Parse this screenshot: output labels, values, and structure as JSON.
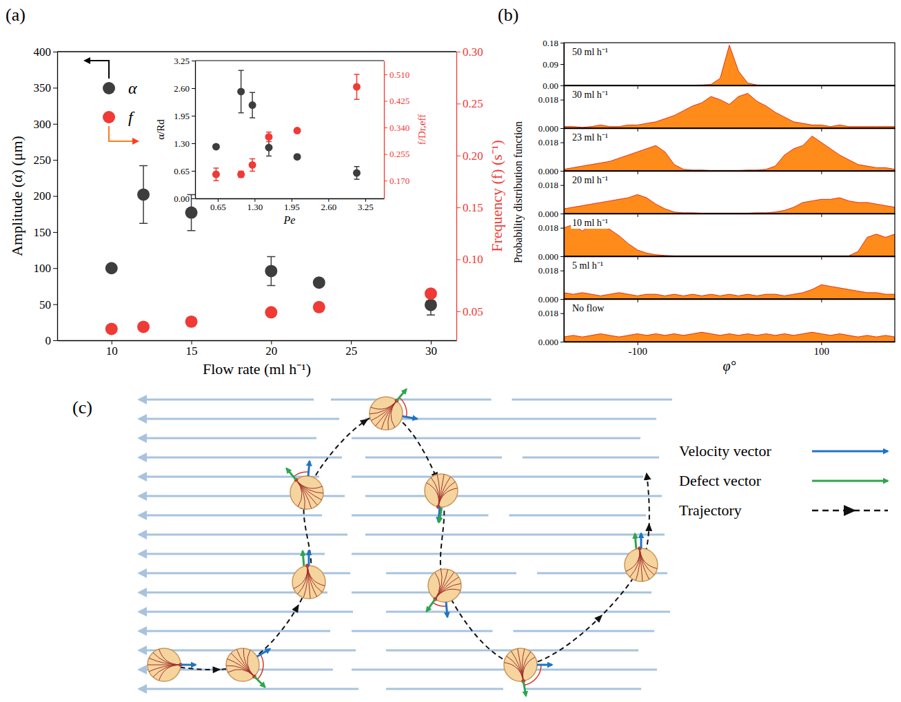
{
  "chart_data": [
    {
      "type": "scatter",
      "title": "(a)",
      "x_label": "Flow rate (ml h⁻¹)",
      "y_label": "Amplitude (α) (μm)",
      "y2_label": "Frequency (f) (s⁻¹)",
      "legend": "upper left",
      "xlim": [
        6.6,
        31.6
      ],
      "xticks": [
        10,
        15,
        20,
        25,
        30
      ],
      "ylim": [
        0,
        400
      ],
      "yticks": [
        0,
        50,
        100,
        150,
        200,
        250,
        300,
        350,
        400
      ],
      "y2lim": [
        0.022,
        0.3
      ],
      "y2ticks": [
        0.05,
        {
          "value": 0.1,
          "label": "0.10"
        },
        0.15,
        {
          "value": 0.2,
          "label": "0.20"
        },
        0.25,
        {
          "value": 0.3,
          "label": "0.30"
        }
      ],
      "x": [
        10,
        12,
        15,
        20,
        23,
        30
      ],
      "series": [
        {
          "name": "α",
          "color": "#3d3d3d",
          "marker": "circle",
          "values": [
            100,
            202,
            177,
            96,
            80,
            49
          ],
          "errors": [
            0,
            40,
            25,
            20,
            0,
            14
          ]
        },
        {
          "name": "f",
          "color": "#ef3a35",
          "marker": "circle",
          "axis": "y2",
          "values": [
            0.033,
            0.035,
            0.04,
            0.049,
            0.054,
            0.067
          ],
          "errors": [
            0,
            0,
            0,
            0,
            0,
            0.004
          ]
        }
      ]
    },
    {
      "type": "scatter",
      "x_label": "Pe",
      "y_label": "α/Rd",
      "y2_label": "f/Dr,eff",
      "xlim": [
        0.25,
        3.58
      ],
      "xticks": [
        0.65,
        {
          "value": 1.3,
          "label": "1.30"
        },
        1.95,
        {
          "value": 2.6,
          "label": "2.60"
        },
        3.25
      ],
      "ylim": [
        0,
        3.25
      ],
      "yticks": [
        {
          "value": 0,
          "label": "0.00"
        },
        0.65,
        {
          "value": 1.3,
          "label": "1.30"
        },
        1.95,
        {
          "value": 2.6,
          "label": "2.60"
        },
        3.25
      ],
      "y2lim": [
        0.113,
        0.554
      ],
      "y2ticks": [
        {
          "value": 0.17,
          "label": "0.170"
        },
        0.255,
        {
          "value": 0.34,
          "label": "0.340"
        },
        0.425,
        {
          "value": 0.51,
          "label": "0.510"
        }
      ],
      "x": [
        0.62,
        1.06,
        1.26,
        1.55,
        2.05,
        3.1
      ],
      "series": [
        {
          "color": "#3d3d3d",
          "marker": "circle",
          "values": [
            1.22,
            2.52,
            2.2,
            1.2,
            0.98,
            0.6
          ],
          "errors": [
            0.05,
            0.5,
            0.3,
            0.2,
            0.05,
            0.15
          ]
        },
        {
          "color": "#ef3a35",
          "marker": "circle",
          "axis": "y2",
          "values": [
            0.19,
            0.19,
            0.22,
            0.31,
            0.33,
            0.47
          ],
          "errors": [
            0.02,
            0.01,
            0.02,
            0.015,
            0.005,
            0.04
          ]
        }
      ]
    },
    {
      "type": "area",
      "title": "(b)",
      "x_label": "φ°",
      "y_label": "Probability distribution function",
      "color": "#ff8c1a",
      "xlim": [
        -180,
        180
      ],
      "xticks": [
        -100,
        100
      ],
      "x": [
        -180,
        -170,
        -160,
        -150,
        -140,
        -130,
        -120,
        -110,
        -100,
        -90,
        -80,
        -70,
        -60,
        -50,
        -40,
        -30,
        -20,
        -10,
        0,
        10,
        20,
        30,
        40,
        50,
        60,
        70,
        80,
        90,
        100,
        110,
        120,
        130,
        140,
        150,
        160,
        170,
        180
      ],
      "series": [
        {
          "name": "50 ml h⁻¹",
          "ylim": [
            0,
            0.18
          ],
          "yticks": [
            {
              "value": 0,
              "label": "0.00"
            },
            0.09,
            0.18
          ],
          "values": [
            0.001,
            0.001,
            0.001,
            0.001,
            0.001,
            0.001,
            0.001,
            0.001,
            0.001,
            0.001,
            0.001,
            0.001,
            0.001,
            0.001,
            0.001,
            0.002,
            0.004,
            0.03,
            0.17,
            0.06,
            0.01,
            0.002,
            0.001,
            0.001,
            0.001,
            0.001,
            0.001,
            0.001,
            0.001,
            0.001,
            0.001,
            0.001,
            0.001,
            0.001,
            0.001,
            0.001,
            0.001
          ]
        },
        {
          "name": "30 ml h⁻¹",
          "ylim": [
            0,
            0.027
          ],
          "yticks": [
            {
              "value": 0,
              "label": "0.000"
            },
            0.018
          ],
          "values": [
            0.001,
            0.001,
            0.0005,
            0.001,
            0.002,
            0.001,
            0.001,
            0.002,
            0.002,
            0.003,
            0.004,
            0.006,
            0.008,
            0.011,
            0.014,
            0.016,
            0.02,
            0.018,
            0.015,
            0.02,
            0.022,
            0.017,
            0.014,
            0.01,
            0.007,
            0.004,
            0.003,
            0.002,
            0.002,
            0.001,
            0.002,
            0.001,
            0.001,
            0.001,
            0.001,
            0.001,
            0.001
          ]
        },
        {
          "name": "23 ml h⁻¹",
          "ylim": [
            0,
            0.027
          ],
          "yticks": [
            {
              "value": 0,
              "label": "0.000"
            },
            0.018
          ],
          "values": [
            0.001,
            0.002,
            0.003,
            0.004,
            0.005,
            0.006,
            0.008,
            0.01,
            0.012,
            0.014,
            0.016,
            0.012,
            0.004,
            0.001,
            0.0005,
            0.0005,
            0.0003,
            0.0003,
            0.0003,
            0.0003,
            0.0005,
            0.0005,
            0.001,
            0.003,
            0.01,
            0.014,
            0.016,
            0.022,
            0.018,
            0.014,
            0.01,
            0.007,
            0.004,
            0.003,
            0.002,
            0.002,
            0.001
          ]
        },
        {
          "name": "20 ml h⁻¹",
          "ylim": [
            0,
            0.027
          ],
          "yticks": [
            {
              "value": 0,
              "label": "0.000"
            },
            0.018
          ],
          "values": [
            0.003,
            0.004,
            0.005,
            0.006,
            0.007,
            0.008,
            0.009,
            0.01,
            0.012,
            0.01,
            0.006,
            0.003,
            0.001,
            0.0005,
            0.0005,
            0.0003,
            0.0003,
            0.0003,
            0.0003,
            0.0003,
            0.0003,
            0.0005,
            0.0005,
            0.001,
            0.002,
            0.004,
            0.007,
            0.008,
            0.009,
            0.009,
            0.01,
            0.008,
            0.007,
            0.007,
            0.006,
            0.005,
            0.004
          ]
        },
        {
          "name": "10 ml h⁻¹",
          "ylim": [
            0,
            0.027
          ],
          "yticks": [
            {
              "value": 0,
              "label": "0.000"
            },
            0.018
          ],
          "values": [
            0.018,
            0.02,
            0.016,
            0.02,
            0.019,
            0.017,
            0.013,
            0.008,
            0.004,
            0.002,
            0.001,
            0.0005,
            0.0003,
            0.0003,
            0.0003,
            0.0003,
            0.0003,
            0.0003,
            0.0003,
            0.0003,
            0.0003,
            0.0003,
            0.0003,
            0.0003,
            0.0003,
            0.0003,
            0.0003,
            0.0003,
            0.0003,
            0.0003,
            0.0003,
            0.0003,
            0.003,
            0.012,
            0.014,
            0.012,
            0.014
          ]
        },
        {
          "name": "5 ml h⁻¹",
          "ylim": [
            0,
            0.027
          ],
          "yticks": [
            {
              "value": 0,
              "label": "0.000"
            },
            0.018
          ],
          "values": [
            0.004,
            0.003,
            0.004,
            0.003,
            0.002,
            0.003,
            0.004,
            0.003,
            0.002,
            0.003,
            0.003,
            0.002,
            0.003,
            0.002,
            0.003,
            0.002,
            0.003,
            0.002,
            0.003,
            0.002,
            0.003,
            0.002,
            0.003,
            0.003,
            0.002,
            0.003,
            0.004,
            0.006,
            0.009,
            0.008,
            0.007,
            0.006,
            0.005,
            0.004,
            0.004,
            0.003,
            0.003
          ]
        },
        {
          "name": "No flow",
          "ylim": [
            0,
            0.027
          ],
          "yticks": [
            {
              "value": 0,
              "label": "0.000"
            },
            0.018
          ],
          "values": [
            0.003,
            0.004,
            0.003,
            0.004,
            0.005,
            0.004,
            0.003,
            0.004,
            0.005,
            0.004,
            0.005,
            0.004,
            0.005,
            0.004,
            0.005,
            0.006,
            0.005,
            0.004,
            0.005,
            0.004,
            0.005,
            0.004,
            0.005,
            0.004,
            0.005,
            0.004,
            0.005,
            0.006,
            0.005,
            0.004,
            0.005,
            0.004,
            0.003,
            0.004,
            0.003,
            0.004,
            0.003
          ]
        }
      ]
    }
  ],
  "diagram": {
    "title": "(c)",
    "legend": [
      {
        "label": "Velocity vector",
        "color": "#1f74c4"
      },
      {
        "label": "Defect vector",
        "color": "#2ea44f"
      },
      {
        "label": "Trajectory",
        "color": "#111111"
      }
    ]
  }
}
